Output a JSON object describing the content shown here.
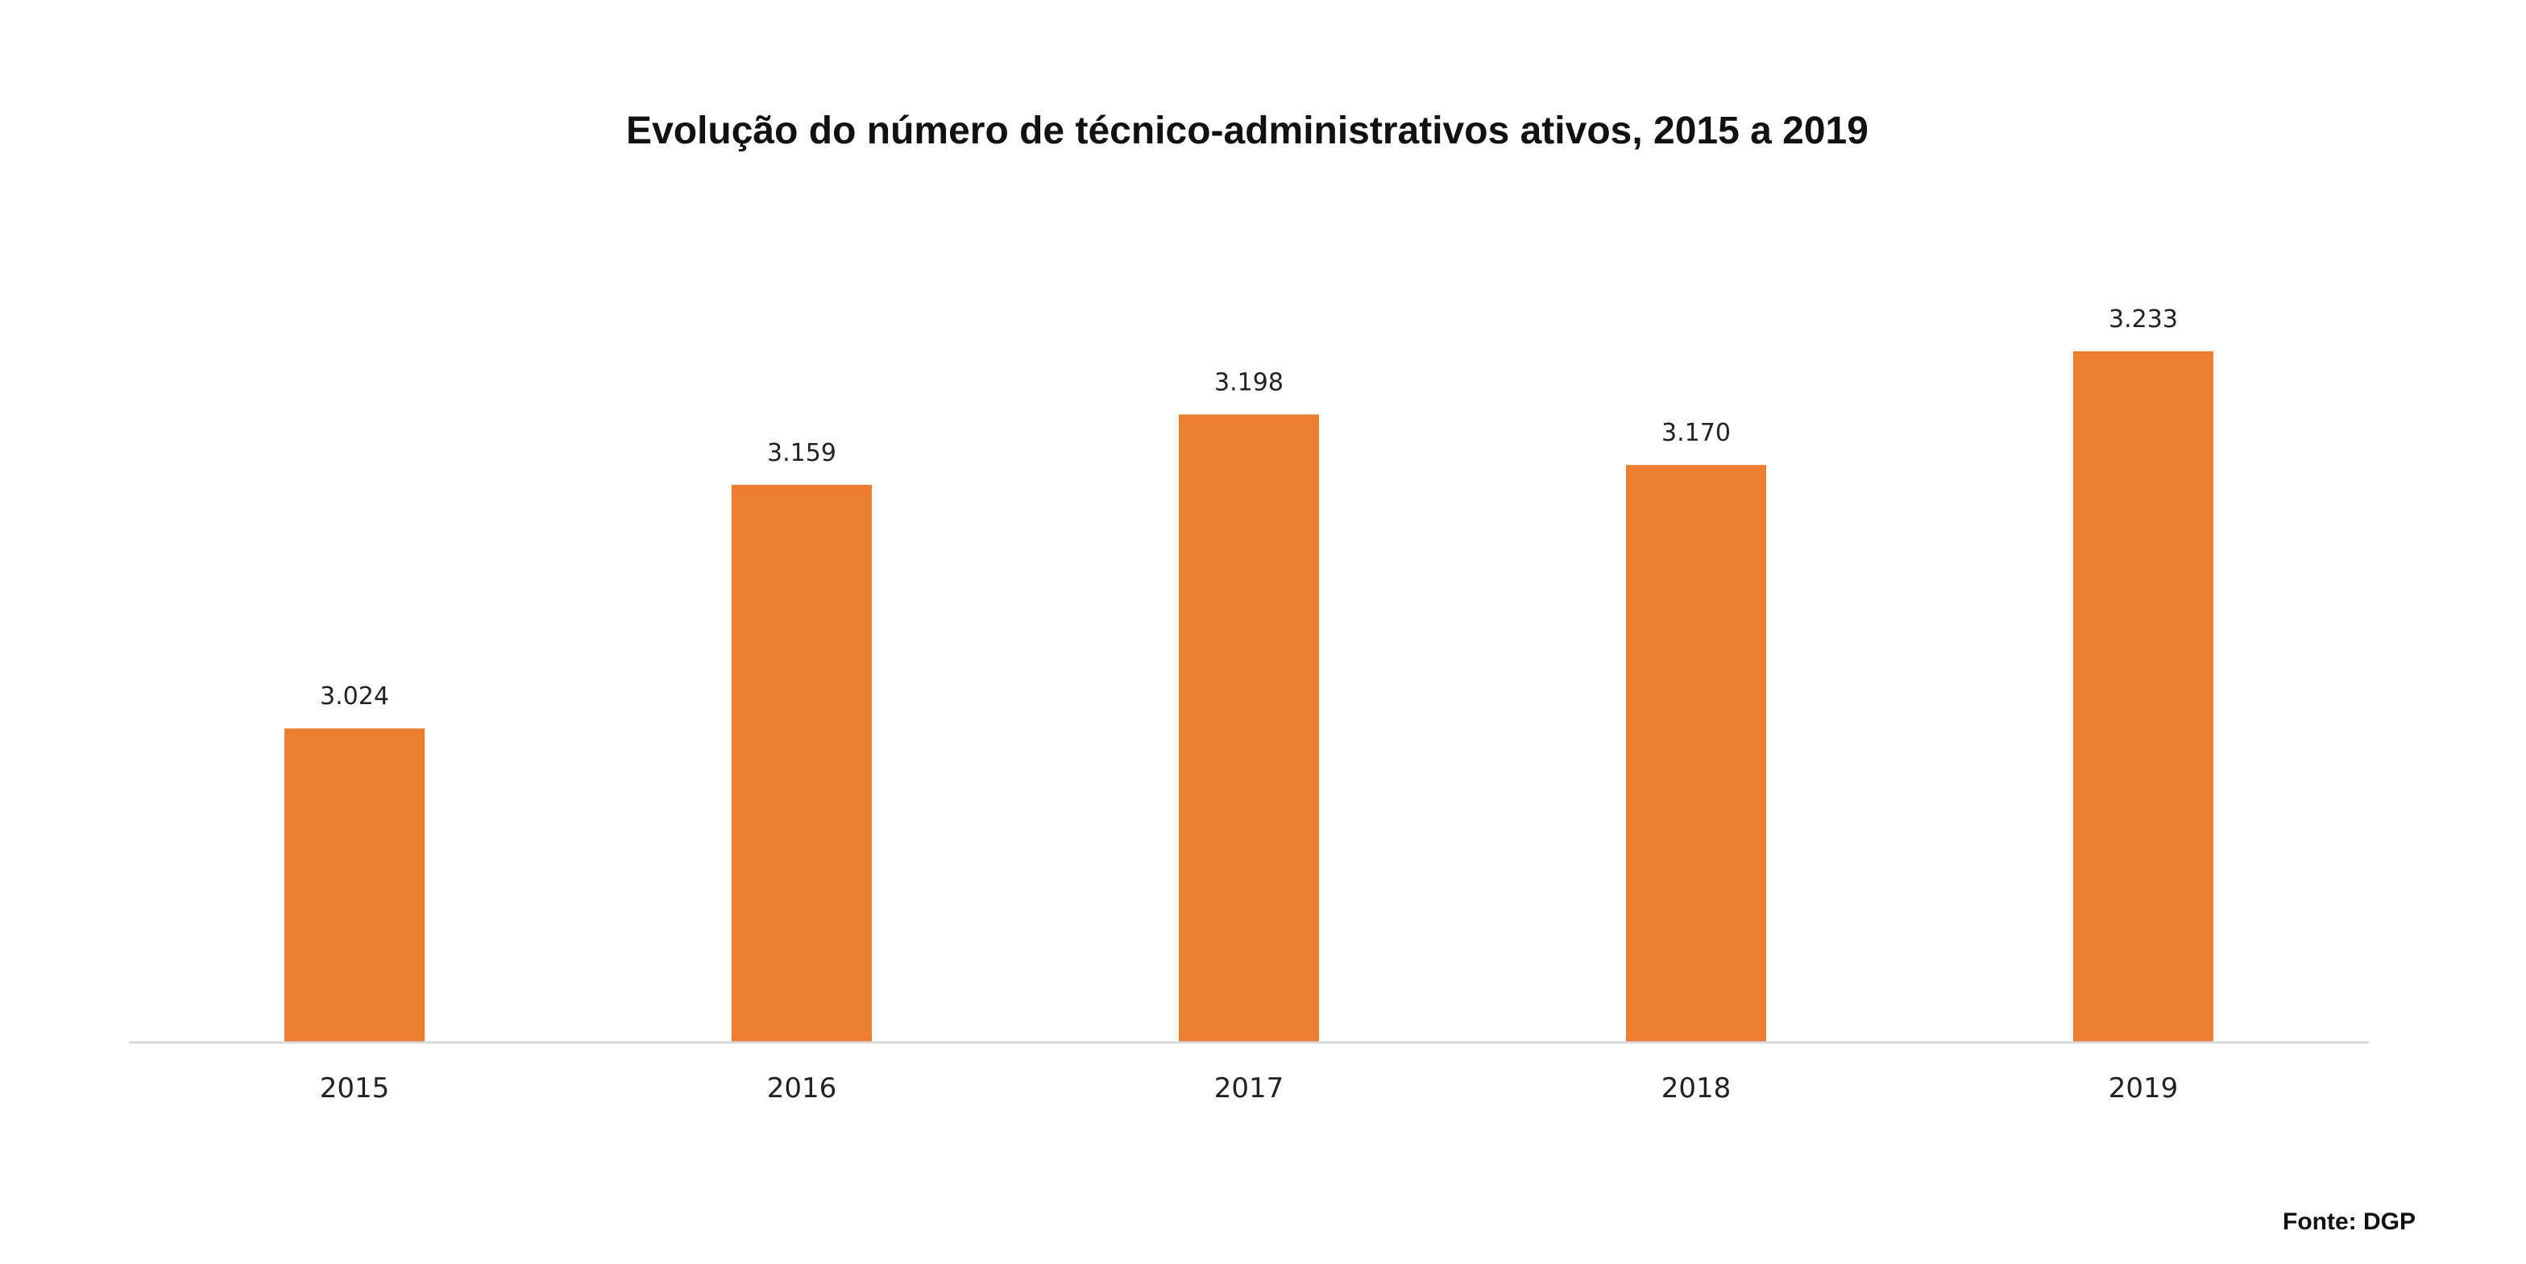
{
  "chart_data": {
    "type": "bar",
    "title": "Evolução do número de técnico-administrativos ativos, 2015 a 2019",
    "categories": [
      "2015",
      "2016",
      "2017",
      "2018",
      "2019"
    ],
    "values": [
      3024,
      3159,
      3198,
      3170,
      3233
    ],
    "data_labels": [
      "3.024",
      "3.159",
      "3.198",
      "3.170",
      "3.233"
    ],
    "xlabel": "",
    "ylabel": "",
    "ylim": [
      2850,
      3250
    ],
    "grid": false,
    "legend": "none"
  },
  "source": "Fonte: DGP",
  "colors": {
    "bar": "#ED7D31",
    "axis": "#D9D9D9",
    "text": "#222222"
  }
}
